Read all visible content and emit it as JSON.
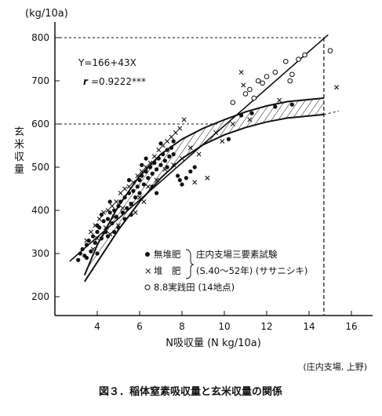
{
  "figure": {
    "caption": "図３．稲体窒素吸収量と玄米収量の関係",
    "source": "(庄内支場, 上野)"
  },
  "chart_data": {
    "type": "scatter",
    "title": "",
    "xlabel": "N吸収量 (N kg/10a)",
    "ylabel": "玄米収量",
    "yunit": "(kg/10a)",
    "xlim": [
      2,
      16
    ],
    "ylim": [
      150,
      830
    ],
    "xticks": [
      4,
      6,
      8,
      10,
      12,
      14,
      16
    ],
    "yticks": [
      200,
      300,
      400,
      500,
      600,
      700,
      800
    ],
    "grid": false,
    "regression": {
      "equation": "Y=166+43X",
      "r_label": "r",
      "r_value": "=0.9222***",
      "intercept": 166,
      "slope": 43,
      "x_range": [
        2.7,
        14.9
      ]
    },
    "reference_lines": [
      {
        "style": "dashed",
        "y": 800,
        "x_end": 14.7
      },
      {
        "style": "dashed",
        "y": 600,
        "x_end": 9.8
      },
      {
        "style": "dashed",
        "x": 14.7,
        "y_start": 150,
        "y_end": 800
      }
    ],
    "band": {
      "label": "hatched band",
      "upper": [
        [
          3.4,
          250
        ],
        [
          4.0,
          320
        ],
        [
          5.0,
          410
        ],
        [
          6.0,
          480
        ],
        [
          7.0,
          530
        ],
        [
          8.0,
          565
        ],
        [
          9.0,
          590
        ],
        [
          10.0,
          610
        ],
        [
          11.0,
          628
        ],
        [
          12.0,
          642
        ],
        [
          13.0,
          652
        ],
        [
          14.7,
          660
        ]
      ],
      "lower": [
        [
          3.4,
          235
        ],
        [
          4.0,
          280
        ],
        [
          5.0,
          355
        ],
        [
          6.0,
          420
        ],
        [
          7.0,
          475
        ],
        [
          8.0,
          520
        ],
        [
          9.0,
          552
        ],
        [
          10.0,
          575
        ],
        [
          11.0,
          592
        ],
        [
          12.0,
          605
        ],
        [
          13.0,
          614
        ],
        [
          14.7,
          622
        ]
      ],
      "lower_extension": [
        [
          14.7,
          622
        ],
        [
          15.4,
          630
        ]
      ]
    },
    "legend": {
      "placement": "lower-right",
      "items": [
        {
          "marker": "filled-circle",
          "label": "無堆肥"
        },
        {
          "marker": "cross",
          "label": "堆　肥"
        },
        {
          "marker": "open-circle",
          "label": "8.8実践田 (14地点)"
        }
      ],
      "bracket_labels": [
        "庄内支場三要素試験",
        "(S.40～52年) (ササニシキ)"
      ]
    },
    "series": [
      {
        "name": "無堆肥",
        "marker": "filled-circle",
        "points": [
          [
            3.1,
            285
          ],
          [
            3.2,
            300
          ],
          [
            3.3,
            310
          ],
          [
            3.4,
            295
          ],
          [
            3.5,
            320
          ],
          [
            3.5,
            290
          ],
          [
            3.6,
            330
          ],
          [
            3.7,
            305
          ],
          [
            3.8,
            340
          ],
          [
            3.9,
            325
          ],
          [
            4.0,
            350
          ],
          [
            4.0,
            300
          ],
          [
            4.1,
            360
          ],
          [
            4.2,
            335
          ],
          [
            4.3,
            375
          ],
          [
            4.4,
            350
          ],
          [
            4.5,
            380
          ],
          [
            4.5,
            340
          ],
          [
            4.6,
            395
          ],
          [
            4.7,
            370
          ],
          [
            4.8,
            400
          ],
          [
            4.9,
            385
          ],
          [
            5.0,
            410
          ],
          [
            5.0,
            360
          ],
          [
            5.1,
            420
          ],
          [
            5.2,
            395
          ],
          [
            5.3,
            430
          ],
          [
            5.4,
            405
          ],
          [
            5.5,
            440
          ],
          [
            5.6,
            415
          ],
          [
            5.7,
            445
          ],
          [
            5.8,
            430
          ],
          [
            5.9,
            455
          ],
          [
            6.0,
            470
          ],
          [
            6.0,
            440
          ],
          [
            6.1,
            480
          ],
          [
            6.2,
            460
          ],
          [
            6.3,
            490
          ],
          [
            6.4,
            475
          ],
          [
            6.5,
            500
          ],
          [
            6.6,
            485
          ],
          [
            6.7,
            510
          ],
          [
            6.8,
            495
          ],
          [
            6.9,
            520
          ],
          [
            7.0,
            505
          ],
          [
            7.1,
            530
          ],
          [
            7.2,
            515
          ],
          [
            7.3,
            540
          ],
          [
            7.4,
            525
          ],
          [
            7.5,
            545
          ],
          [
            7.6,
            530
          ],
          [
            7.8,
            480
          ],
          [
            7.9,
            470
          ],
          [
            8.0,
            460
          ],
          [
            8.2,
            475
          ],
          [
            8.4,
            490
          ],
          [
            4.0,
            365
          ],
          [
            4.2,
            390
          ],
          [
            4.6,
            420
          ],
          [
            5.5,
            470
          ],
          [
            6.3,
            520
          ],
          [
            7.0,
            555
          ],
          [
            7.6,
            560
          ],
          [
            6.8,
            440
          ],
          [
            5.3,
            380
          ],
          [
            4.8,
            350
          ],
          [
            6.1,
            505
          ],
          [
            7.3,
            500
          ],
          [
            6.6,
            455
          ],
          [
            5.6,
            390
          ],
          [
            8.6,
            500
          ],
          [
            10.2,
            565
          ],
          [
            10.8,
            620
          ],
          [
            11.3,
            625
          ],
          [
            13.2,
            645
          ],
          [
            12.4,
            640
          ]
        ]
      },
      {
        "name": "堆　肥",
        "marker": "cross",
        "points": [
          [
            3.5,
            330
          ],
          [
            3.7,
            350
          ],
          [
            3.9,
            365
          ],
          [
            4.1,
            380
          ],
          [
            4.3,
            395
          ],
          [
            4.5,
            400
          ],
          [
            4.7,
            410
          ],
          [
            4.9,
            420
          ],
          [
            5.1,
            440
          ],
          [
            5.3,
            450
          ],
          [
            5.5,
            455
          ],
          [
            5.7,
            465
          ],
          [
            5.9,
            480
          ],
          [
            6.1,
            490
          ],
          [
            6.3,
            500
          ],
          [
            6.5,
            510
          ],
          [
            6.7,
            525
          ],
          [
            6.9,
            540
          ],
          [
            7.1,
            550
          ],
          [
            7.3,
            560
          ],
          [
            7.5,
            570
          ],
          [
            7.7,
            580
          ],
          [
            7.9,
            590
          ],
          [
            8.1,
            610
          ],
          [
            4.0,
            335
          ],
          [
            4.4,
            360
          ],
          [
            4.8,
            385
          ],
          [
            5.2,
            405
          ],
          [
            5.6,
            415
          ],
          [
            6.0,
            430
          ],
          [
            6.4,
            455
          ],
          [
            6.8,
            470
          ],
          [
            7.2,
            495
          ],
          [
            7.6,
            505
          ],
          [
            8.0,
            520
          ],
          [
            8.4,
            545
          ],
          [
            8.8,
            530
          ],
          [
            9.2,
            475
          ],
          [
            8.6,
            465
          ],
          [
            5.0,
            365
          ],
          [
            5.8,
            395
          ],
          [
            6.2,
            420
          ],
          [
            4.6,
            345
          ],
          [
            3.8,
            310
          ],
          [
            9.6,
            580
          ],
          [
            10.4,
            600
          ],
          [
            10.9,
            690
          ],
          [
            10.8,
            720
          ],
          [
            12.6,
            655
          ],
          [
            15.3,
            685
          ],
          [
            11.2,
            610
          ],
          [
            9.9,
            560
          ]
        ]
      },
      {
        "name": "8.8実践田 (14地点)",
        "marker": "open-circle",
        "points": [
          [
            10.4,
            650
          ],
          [
            11.0,
            670
          ],
          [
            11.2,
            680
          ],
          [
            11.4,
            660
          ],
          [
            11.6,
            700
          ],
          [
            11.8,
            695
          ],
          [
            12.0,
            710
          ],
          [
            12.4,
            720
          ],
          [
            12.9,
            745
          ],
          [
            13.1,
            700
          ],
          [
            13.2,
            715
          ],
          [
            13.5,
            750
          ],
          [
            13.8,
            760
          ],
          [
            15.0,
            770
          ]
        ]
      }
    ]
  }
}
